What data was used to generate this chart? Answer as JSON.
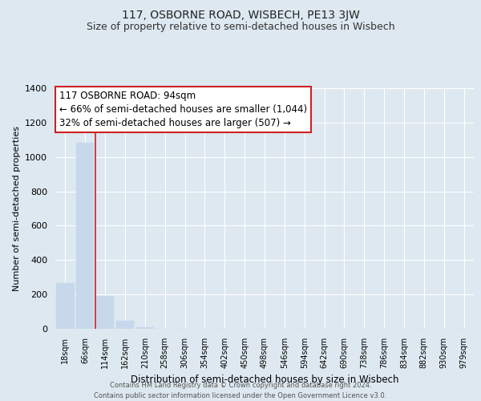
{
  "title": "117, OSBORNE ROAD, WISBECH, PE13 3JW",
  "subtitle": "Size of property relative to semi-detached houses in Wisbech",
  "xlabel": "Distribution of semi-detached houses by size in Wisbech",
  "ylabel": "Number of semi-detached properties",
  "bar_labels": [
    "18sqm",
    "66sqm",
    "114sqm",
    "162sqm",
    "210sqm",
    "258sqm",
    "306sqm",
    "354sqm",
    "402sqm",
    "450sqm",
    "498sqm",
    "546sqm",
    "594sqm",
    "642sqm",
    "690sqm",
    "738sqm",
    "786sqm",
    "834sqm",
    "882sqm",
    "930sqm",
    "979sqm"
  ],
  "bar_values": [
    265,
    1083,
    193,
    48,
    10,
    0,
    0,
    0,
    0,
    0,
    0,
    0,
    0,
    0,
    0,
    0,
    0,
    0,
    0,
    0,
    0
  ],
  "bar_color": "#c8d8ec",
  "property_line_x": 1.5,
  "property_line_color": "#cc2222",
  "annotation_title": "117 OSBORNE ROAD: 94sqm",
  "annotation_line1": "← 66% of semi-detached houses are smaller (1,044)",
  "annotation_line2": "32% of semi-detached houses are larger (507) →",
  "annotation_box_color": "white",
  "annotation_box_edge_color": "#cc2222",
  "ylim": [
    0,
    1400
  ],
  "yticks": [
    0,
    200,
    400,
    600,
    800,
    1000,
    1200,
    1400
  ],
  "footer_line1": "Contains HM Land Registry data © Crown copyright and database right 2024.",
  "footer_line2": "Contains public sector information licensed under the Open Government Licence v3.0.",
  "background_color": "#dde8f0",
  "plot_background_color": "#dde8f0",
  "grid_color": "white",
  "title_fontsize": 10,
  "subtitle_fontsize": 9
}
